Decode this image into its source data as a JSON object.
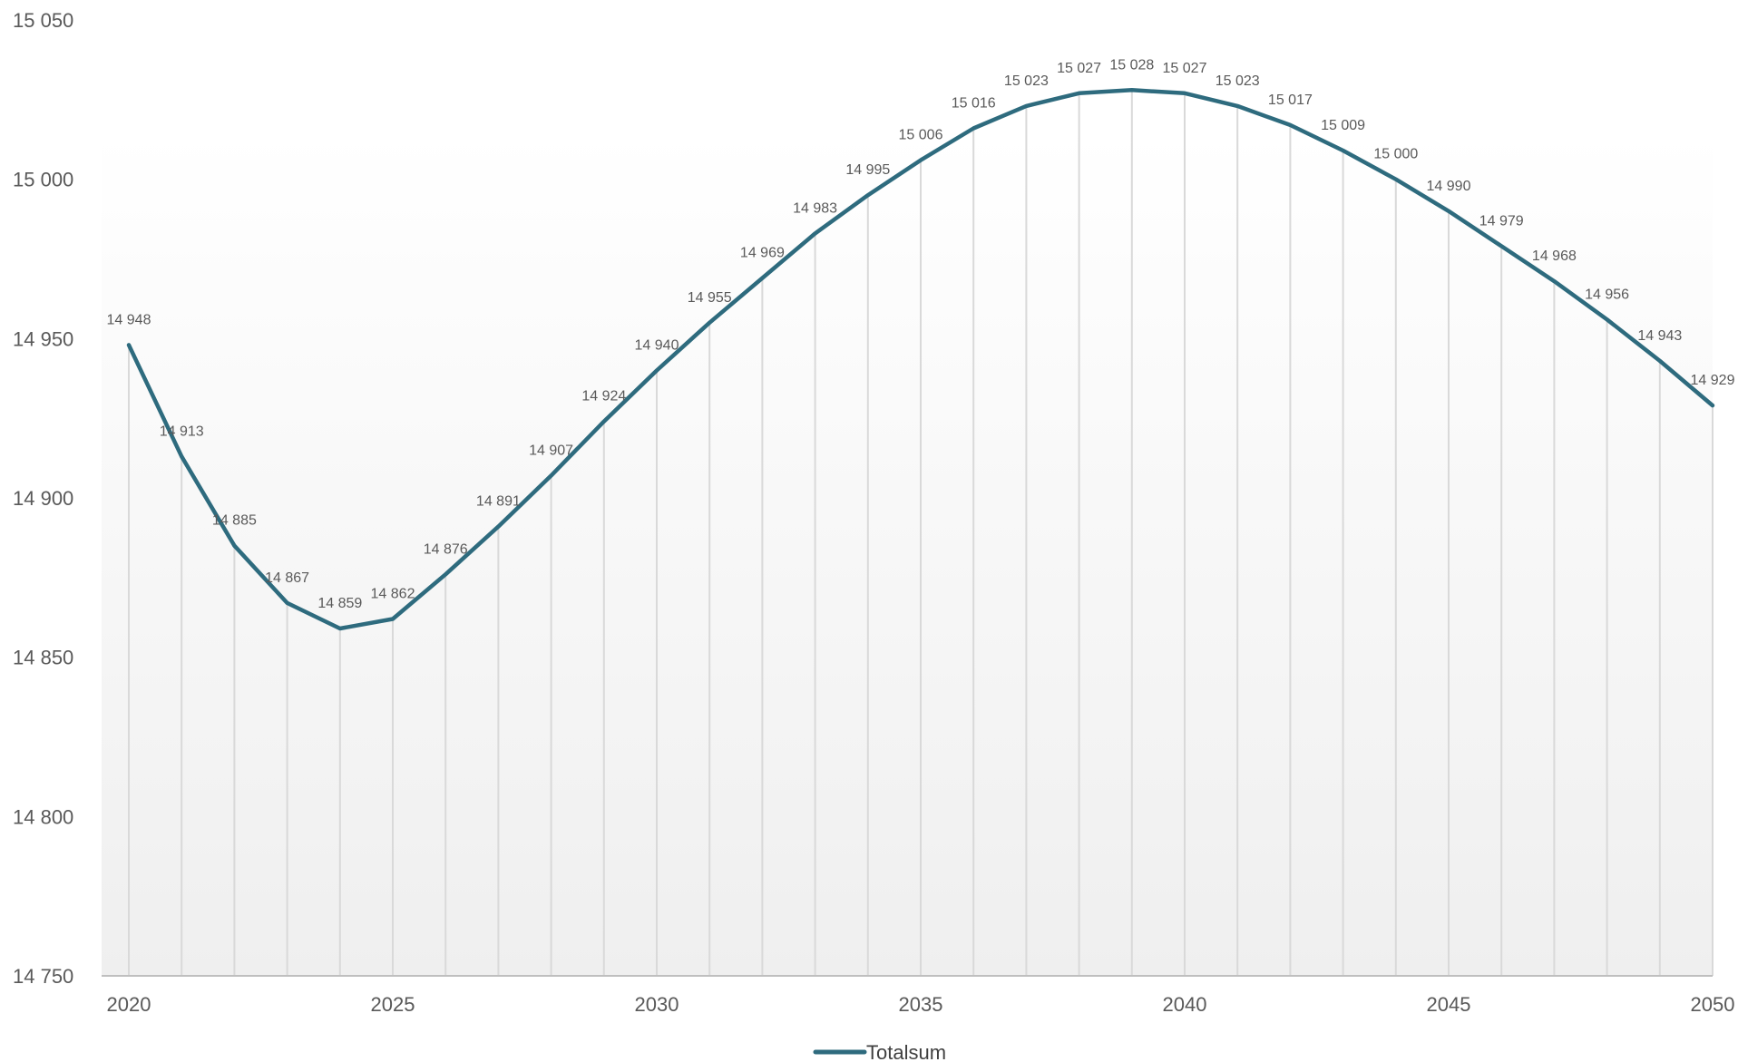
{
  "chart_data": {
    "type": "line",
    "x": [
      2020,
      2021,
      2022,
      2023,
      2024,
      2025,
      2026,
      2027,
      2028,
      2029,
      2030,
      2031,
      2032,
      2033,
      2034,
      2035,
      2036,
      2037,
      2038,
      2039,
      2040,
      2041,
      2042,
      2043,
      2044,
      2045,
      2046,
      2047,
      2048,
      2049,
      2050
    ],
    "series": [
      {
        "name": "Totalsum",
        "values": [
          14948,
          14913,
          14885,
          14867,
          14859,
          14862,
          14876,
          14891,
          14907,
          14924,
          14940,
          14955,
          14969,
          14983,
          14995,
          15006,
          15016,
          15023,
          15027,
          15028,
          15027,
          15023,
          15017,
          15009,
          15000,
          14990,
          14979,
          14968,
          14956,
          14943,
          14929
        ],
        "labels": [
          "14 948",
          "14 913",
          "14 885",
          "14 867",
          "14 859",
          "14 862",
          "14 876",
          "14 891",
          "14 907",
          "14 924",
          "14 940",
          "14 955",
          "14 969",
          "14 983",
          "14 995",
          "15 006",
          "15 016",
          "15 023",
          "15 027",
          "15 028",
          "15 027",
          "15 023",
          "15 017",
          "15 009",
          "15 000",
          "14 990",
          "14 979",
          "14 968",
          "14 956",
          "14 943",
          "14 929"
        ],
        "color": "#2E6B7E"
      }
    ],
    "ylim": [
      14750,
      15050
    ],
    "yticks": [
      {
        "value": 15050,
        "label": "15 050"
      },
      {
        "value": 15000,
        "label": "15 000"
      },
      {
        "value": 14950,
        "label": "14 950"
      },
      {
        "value": 14900,
        "label": "14 900"
      },
      {
        "value": 14850,
        "label": "14 850"
      },
      {
        "value": 14800,
        "label": "14 800"
      },
      {
        "value": 14750,
        "label": "14 750"
      }
    ],
    "xticks": [
      {
        "value": 2020,
        "label": "2020"
      },
      {
        "value": 2025,
        "label": "2025"
      },
      {
        "value": 2030,
        "label": "2030"
      },
      {
        "value": 2035,
        "label": "2035"
      },
      {
        "value": 2040,
        "label": "2040"
      },
      {
        "value": 2045,
        "label": "2045"
      },
      {
        "value": 2050,
        "label": "2050"
      }
    ],
    "title": "",
    "xlabel": "",
    "ylabel": "",
    "legend": {
      "position": "bottom"
    },
    "drop_lines": true,
    "colors": {
      "line": "#2E6B7E",
      "drop_line": "#D9D9D9",
      "axis": "#BFBFBF",
      "text": "#595959",
      "background_top": "#FFFFFF",
      "background_bottom": "#EFEFEF"
    }
  }
}
